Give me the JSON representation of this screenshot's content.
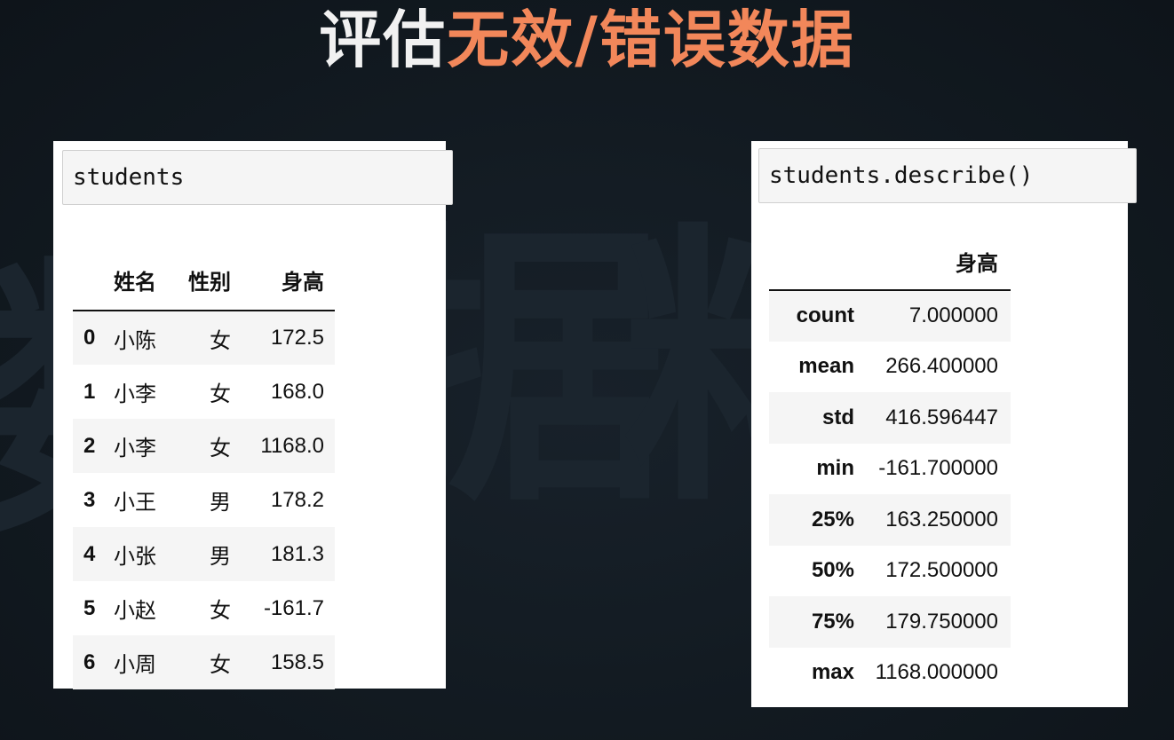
{
  "title": {
    "part1": "评估",
    "part2": "无效/错误数据"
  },
  "watermark": [
    "数",
    "据",
    "料"
  ],
  "left": {
    "code": "students",
    "headers": [
      "",
      "姓名",
      "性别",
      "身高"
    ],
    "rows": [
      {
        "idx": "0",
        "name": "小陈",
        "sex": "女",
        "height": "172.5"
      },
      {
        "idx": "1",
        "name": "小李",
        "sex": "女",
        "height": "168.0"
      },
      {
        "idx": "2",
        "name": "小李",
        "sex": "女",
        "height": "1168.0"
      },
      {
        "idx": "3",
        "name": "小王",
        "sex": "男",
        "height": "178.2"
      },
      {
        "idx": "4",
        "name": "小张",
        "sex": "男",
        "height": "181.3"
      },
      {
        "idx": "5",
        "name": "小赵",
        "sex": "女",
        "height": "-161.7"
      },
      {
        "idx": "6",
        "name": "小周",
        "sex": "女",
        "height": "158.5"
      }
    ]
  },
  "right": {
    "code": "students.describe()",
    "headers": [
      "",
      "身高"
    ],
    "rows": [
      {
        "stat": "count",
        "value": "7.000000"
      },
      {
        "stat": "mean",
        "value": "266.400000"
      },
      {
        "stat": "std",
        "value": "416.596447"
      },
      {
        "stat": "min",
        "value": "-161.700000"
      },
      {
        "stat": "25%",
        "value": "163.250000"
      },
      {
        "stat": "50%",
        "value": "172.500000"
      },
      {
        "stat": "75%",
        "value": "179.750000"
      },
      {
        "stat": "max",
        "value": "1168.000000"
      }
    ]
  },
  "colors": {
    "background": "#0f161c",
    "title_white": "#f1f1f1",
    "title_orange": "#f2875a"
  }
}
